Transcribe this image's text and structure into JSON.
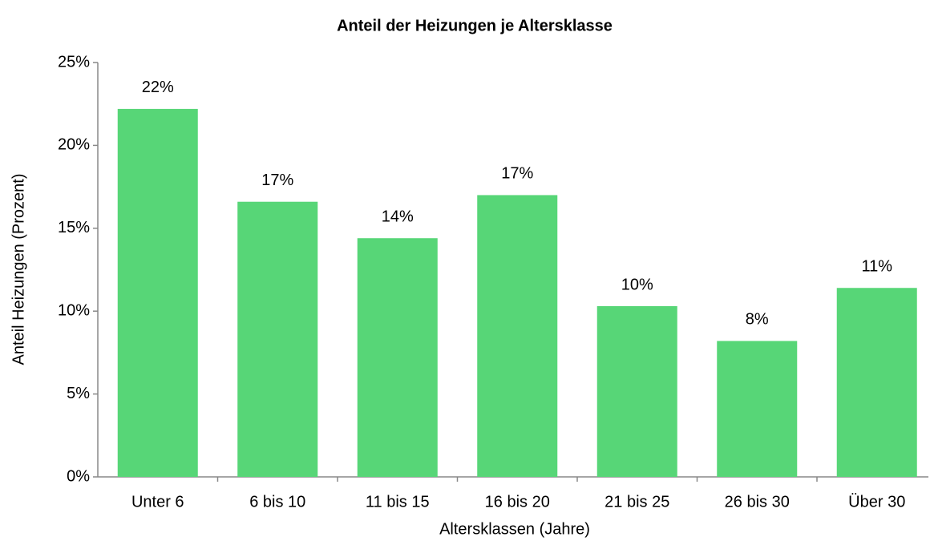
{
  "chart_data": {
    "type": "bar",
    "title": "Anteil der Heizungen je Altersklasse",
    "x_label": "Altersklassen (Jahre)",
    "y_label": "Anteil Heizungen (Prozent)",
    "categories": [
      "Unter 6",
      "6 bis 10",
      "11 bis 15",
      "16 bis 20",
      "21 bis 25",
      "26 bis 30",
      "Über 30"
    ],
    "values": [
      22.2,
      16.6,
      14.4,
      17.0,
      10.3,
      8.2,
      11.4
    ],
    "value_labels": [
      "22%",
      "17%",
      "14%",
      "17%",
      "10%",
      "8%",
      "11%"
    ],
    "color": "#57d677",
    "ylim": [
      0,
      25
    ],
    "yticks": [
      {
        "value": 0,
        "label": "0%"
      },
      {
        "value": 5,
        "label": "5%"
      },
      {
        "value": 10,
        "label": "10%"
      },
      {
        "value": 15,
        "label": "15%"
      },
      {
        "value": 20,
        "label": "20%"
      },
      {
        "value": 25,
        "label": "25%"
      }
    ],
    "grid": false
  }
}
